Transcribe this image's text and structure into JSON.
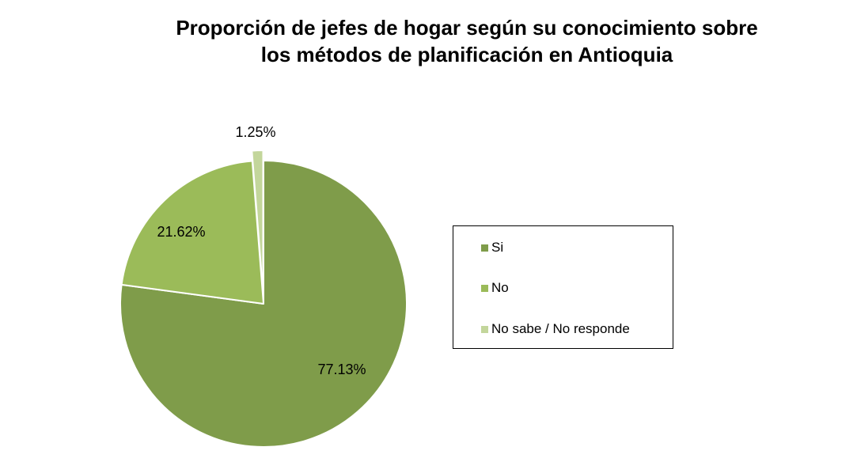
{
  "chart_data": {
    "type": "pie",
    "title": "Proporción de jefes de hogar según su conocimiento sobre los métodos de planificación en Antioquia",
    "title_lines": [
      "Proporción de jefes de hogar según su conocimiento sobre",
      "los métodos de planificación en Antioquia"
    ],
    "slices": [
      {
        "name": "Si",
        "value": 77.13,
        "label": "77.13%",
        "color": "#7f9c4a"
      },
      {
        "name": "No",
        "value": 21.62,
        "label": "21.62%",
        "color": "#9bbb59"
      },
      {
        "name": "No sabe / No responde",
        "value": 1.25,
        "label": "1.25%",
        "color": "#c3d69b",
        "exploded": true
      }
    ],
    "legend_placement": "right"
  }
}
